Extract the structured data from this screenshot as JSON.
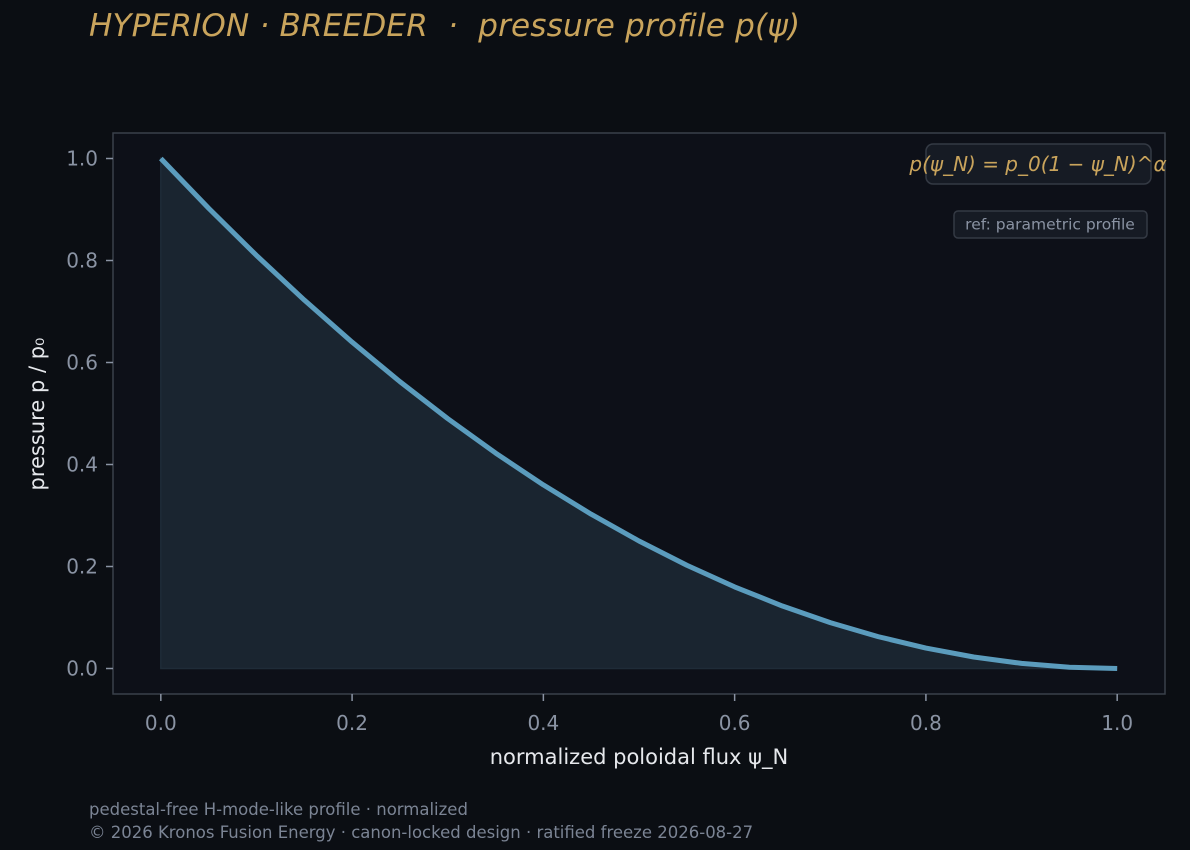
{
  "header": {
    "title": "HYPERION · BREEDER  ·  pressure profile p(ψ)"
  },
  "footer": {
    "line1": "pedestal-free H-mode-like profile · normalized",
    "line2": "© 2026 Kronos Fusion Energy · canon-locked design · ratified freeze 2026-08-27"
  },
  "colors": {
    "background": "#0b0e13",
    "plot_background": "#0d1018",
    "title": "#c9a45c",
    "curve": "#5b9cbd",
    "fill": "#1a2530",
    "axis_frame": "#3a404a",
    "tick_text": "#8a93a3"
  },
  "chart_data": {
    "type": "area",
    "title": "HYPERION · BREEDER  ·  pressure profile p(ψ)",
    "xlabel": "normalized poloidal flux ψ_N",
    "ylabel": "pressure p / p₀",
    "xlim": [
      -0.05,
      1.05
    ],
    "ylim": [
      -0.05,
      1.05
    ],
    "x_ticks": [
      0.0,
      0.2,
      0.4,
      0.6,
      0.8,
      1.0
    ],
    "x_tick_labels": [
      "0.0",
      "0.2",
      "0.4",
      "0.6",
      "0.8",
      "1.0"
    ],
    "y_ticks": [
      0.0,
      0.2,
      0.4,
      0.6,
      0.8,
      1.0
    ],
    "y_tick_labels": [
      "0.0",
      "0.2",
      "0.4",
      "0.6",
      "0.8",
      "1.0"
    ],
    "grid": false,
    "legend": "none",
    "series": [
      {
        "x": [
          0.0,
          0.05,
          0.1,
          0.15,
          0.2,
          0.25,
          0.3,
          0.35,
          0.4,
          0.45,
          0.5,
          0.55,
          0.6,
          0.65,
          0.7,
          0.75,
          0.8,
          0.85,
          0.9,
          0.95,
          1.0
        ],
        "y": [
          1.0,
          0.9025,
          0.81,
          0.7225,
          0.64,
          0.5625,
          0.49,
          0.4225,
          0.36,
          0.3025,
          0.25,
          0.2025,
          0.16,
          0.1225,
          0.09,
          0.0625,
          0.04,
          0.0225,
          0.01,
          0.0025,
          0.0
        ],
        "fill": "to-zero"
      }
    ],
    "annotations": [
      {
        "text": "p(ψ_N) = p_0(1 − ψ_N)^α",
        "placement": "top-right",
        "style": "formula"
      },
      {
        "text": "ref: parametric profile",
        "placement": "top-right",
        "style": "note"
      }
    ]
  }
}
